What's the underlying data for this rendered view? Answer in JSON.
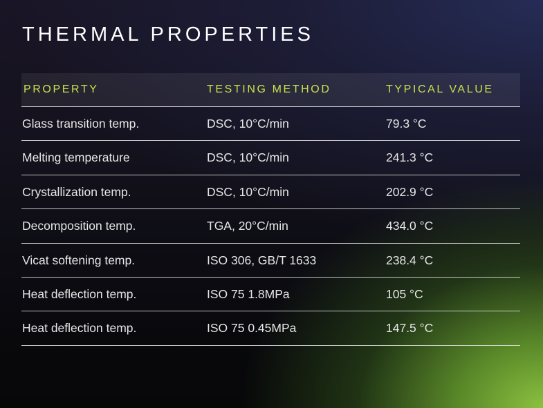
{
  "title": "THERMAL PROPERTIES",
  "table": {
    "headers": [
      "PROPERTY",
      "TESTING METHOD",
      "TYPICAL VALUE"
    ],
    "rows": [
      [
        "Glass transition temp.",
        "DSC, 10°C/min",
        "79.3 °C"
      ],
      [
        "Melting temperature",
        "DSC, 10°C/min",
        "241.3 °C"
      ],
      [
        "Crystallization temp.",
        "DSC, 10°C/min",
        "202.9 °C"
      ],
      [
        "Decomposition temp.",
        "TGA, 20°C/min",
        "434.0 °C"
      ],
      [
        "Vicat softening temp.",
        "ISO 306, GB/T 1633",
        "238.4 °C"
      ],
      [
        "Heat deflection temp.",
        "ISO 75 1.8MPa",
        "105 °C"
      ],
      [
        "Heat deflection temp.",
        "ISO 75 0.45MPa",
        "147.5 °C"
      ]
    ]
  },
  "colors": {
    "header_text": "#c8e14a",
    "body_text": "#e6e6e6",
    "accent_green": "#8bc140"
  }
}
